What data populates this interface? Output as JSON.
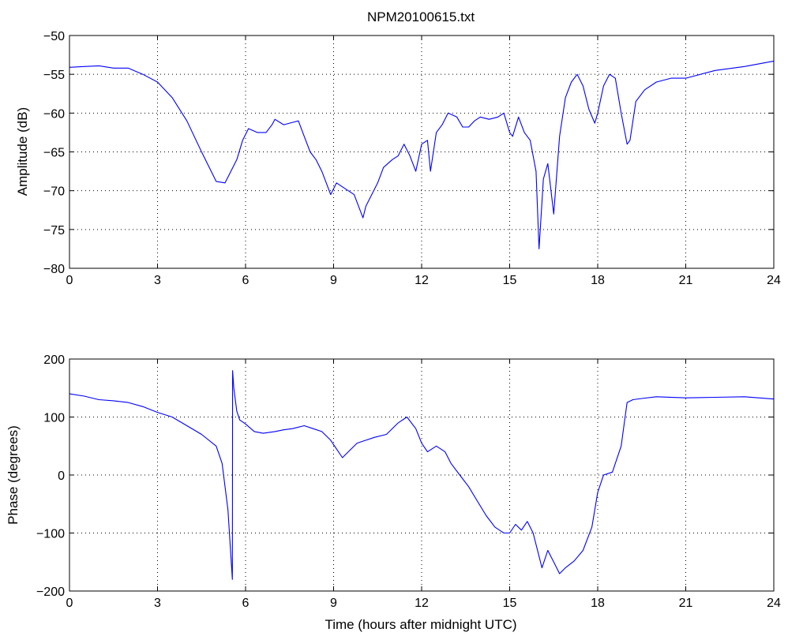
{
  "figure_title": "NPM20100615.txt",
  "chart_data": [
    {
      "type": "line",
      "title": "NPM20100615.txt",
      "xlabel": "",
      "ylabel": "Amplitude (dB)",
      "xlim": [
        0,
        24
      ],
      "ylim": [
        -80,
        -50
      ],
      "xticks": [
        0,
        3,
        6,
        9,
        12,
        15,
        18,
        21,
        24
      ],
      "xtick_labels": [
        "0",
        "3",
        "6",
        "9",
        "12",
        "15",
        "18",
        "21",
        "24"
      ],
      "yticks": [
        -80,
        -75,
        -70,
        -65,
        -60,
        -55,
        -50
      ],
      "ytick_labels": [
        "−80",
        "−75",
        "−70",
        "−65",
        "−60",
        "−55",
        "−50"
      ],
      "grid": true,
      "grid_style": "dotted",
      "line_color": "#0000ff",
      "series": [
        {
          "x": [
            0,
            0.5,
            1.0,
            1.5,
            2.0,
            2.5,
            3.0,
            3.5,
            4.0,
            4.5,
            5.0,
            5.3,
            5.5,
            5.7,
            5.9,
            6.1,
            6.4,
            6.7,
            6.9,
            7.0,
            7.3,
            7.6,
            7.8,
            8.0,
            8.2,
            8.4,
            8.6,
            8.8,
            8.9,
            9.1,
            9.3,
            9.5,
            9.7,
            9.9,
            10.0,
            10.1,
            10.3,
            10.5,
            10.7,
            11.0,
            11.2,
            11.4,
            11.6,
            11.8,
            12.0,
            12.2,
            12.3,
            12.5,
            12.7,
            12.9,
            13.2,
            13.4,
            13.6,
            13.8,
            14.0,
            14.3,
            14.6,
            14.8,
            15.0,
            15.1,
            15.3,
            15.5,
            15.7,
            15.9,
            16.0,
            16.15,
            16.3,
            16.5,
            16.7,
            16.9,
            17.1,
            17.3,
            17.5,
            17.7,
            17.9,
            18.0,
            18.2,
            18.4,
            18.6,
            18.8,
            19.0,
            19.1,
            19.3,
            19.6,
            20.0,
            20.5,
            21.0,
            22.0,
            23.0,
            24.0
          ],
          "y": [
            -54.1,
            -54.0,
            -53.9,
            -54.2,
            -54.2,
            -55.0,
            -56.0,
            -58.0,
            -61.0,
            -65.0,
            -68.8,
            -69.0,
            -67.5,
            -66.0,
            -63.5,
            -62.0,
            -62.5,
            -62.5,
            -61.5,
            -60.8,
            -61.5,
            -61.2,
            -61.0,
            -63.0,
            -65.0,
            -66.0,
            -67.5,
            -69.5,
            -70.5,
            -69.0,
            -69.5,
            -70.0,
            -70.5,
            -72.5,
            -73.5,
            -72.0,
            -70.5,
            -69.0,
            -67.0,
            -66.0,
            -65.5,
            -64.0,
            -65.5,
            -67.5,
            -64.0,
            -63.5,
            -67.5,
            -62.5,
            -61.5,
            -60.0,
            -60.5,
            -61.8,
            -61.8,
            -61.0,
            -60.5,
            -60.8,
            -60.5,
            -60.0,
            -62.5,
            -63.0,
            -60.5,
            -62.5,
            -63.5,
            -67.5,
            -77.5,
            -68.5,
            -66.5,
            -73.0,
            -63.0,
            -58.0,
            -56.0,
            -55.0,
            -56.5,
            -59.5,
            -61.3,
            -60.0,
            -56.5,
            -55.0,
            -55.5,
            -60.0,
            -64.0,
            -63.5,
            -58.5,
            -57.0,
            -56.0,
            -55.5,
            -55.5,
            -54.5,
            -54.0,
            -53.3
          ]
        }
      ]
    },
    {
      "type": "line",
      "title": "",
      "xlabel": "Time (hours after midnight UTC)",
      "ylabel": "Phase (degrees)",
      "xlim": [
        0,
        24
      ],
      "ylim": [
        -200,
        200
      ],
      "xticks": [
        0,
        3,
        6,
        9,
        12,
        15,
        18,
        21,
        24
      ],
      "xtick_labels": [
        "0",
        "3",
        "6",
        "9",
        "12",
        "15",
        "18",
        "21",
        "24"
      ],
      "yticks": [
        -200,
        -100,
        0,
        100,
        200
      ],
      "ytick_labels": [
        "−200",
        "−100",
        "0",
        "100",
        "200"
      ],
      "grid": true,
      "grid_style": "dotted",
      "line_color": "#0000ff",
      "series": [
        {
          "x": [
            0,
            0.5,
            1.0,
            1.5,
            2.0,
            2.5,
            3.0,
            3.5,
            4.0,
            4.5,
            5.0,
            5.2,
            5.4,
            5.55,
            5.56,
            5.6,
            5.7,
            5.8,
            6.0,
            6.3,
            6.6,
            7.0,
            7.3,
            7.6,
            8.0,
            8.3,
            8.6,
            8.9,
            9.1,
            9.3,
            9.5,
            9.8,
            10.1,
            10.4,
            10.8,
            11.2,
            11.5,
            11.8,
            12.0,
            12.2,
            12.5,
            12.8,
            13.0,
            13.3,
            13.6,
            13.9,
            14.2,
            14.5,
            14.8,
            15.0,
            15.2,
            15.4,
            15.6,
            15.8,
            15.95,
            16.1,
            16.3,
            16.5,
            16.7,
            16.9,
            17.2,
            17.5,
            17.8,
            18.0,
            18.2,
            18.5,
            18.8,
            19.0,
            19.2,
            19.5,
            20.0,
            21.0,
            22.0,
            23.0,
            24.0
          ],
          "y": [
            140,
            136,
            130,
            128,
            125,
            118,
            108,
            100,
            85,
            70,
            50,
            20,
            -60,
            -180,
            180,
            150,
            110,
            95,
            88,
            75,
            72,
            75,
            78,
            80,
            85,
            80,
            75,
            60,
            45,
            30,
            40,
            55,
            60,
            65,
            70,
            90,
            100,
            80,
            55,
            40,
            50,
            40,
            20,
            0,
            -20,
            -45,
            -70,
            -90,
            -100,
            -100,
            -85,
            -95,
            -80,
            -100,
            -130,
            -160,
            -130,
            -150,
            -170,
            -160,
            -148,
            -130,
            -90,
            -30,
            0,
            5,
            50,
            125,
            130,
            132,
            135,
            133,
            134,
            135,
            131
          ]
        }
      ]
    }
  ]
}
